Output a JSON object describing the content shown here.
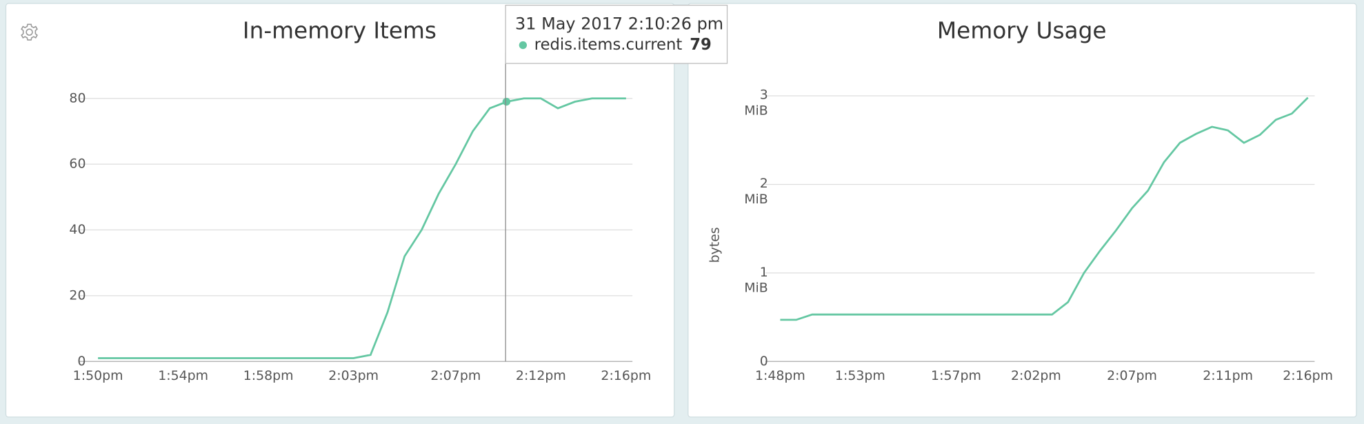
{
  "chart_data": [
    {
      "type": "line",
      "title": "In-memory Items",
      "color": "#64c7a2",
      "grid": true,
      "categories": [
        "1:50pm",
        null,
        null,
        null,
        null,
        "1:54pm",
        null,
        null,
        null,
        null,
        "1:58pm",
        null,
        null,
        null,
        null,
        "2:03pm",
        null,
        null,
        null,
        null,
        null,
        "2:07pm",
        null,
        null,
        null,
        null,
        "2:12pm",
        null,
        null,
        null,
        null,
        "2:16pm"
      ],
      "values": [
        1,
        1,
        1,
        1,
        1,
        1,
        1,
        1,
        1,
        1,
        1,
        1,
        1,
        1,
        1,
        1,
        2,
        15,
        32,
        40,
        51,
        60,
        70,
        77,
        79,
        80,
        80,
        77,
        79,
        80,
        80,
        80
      ],
      "ylim": [
        0,
        88
      ],
      "yticks": [
        0,
        20,
        40,
        60,
        80
      ],
      "tooltip": {
        "title": "31 May 2017 2:10:26 pm",
        "series": "redis.items.current",
        "value": 79
      }
    },
    {
      "type": "line",
      "title": "Memory Usage",
      "ylabel": "bytes",
      "color": "#64c7a2",
      "grid": true,
      "categories": [
        "1:48pm",
        null,
        null,
        null,
        null,
        "1:53pm",
        null,
        null,
        null,
        null,
        null,
        "1:57pm",
        null,
        null,
        null,
        null,
        "2:02pm",
        null,
        null,
        null,
        null,
        null,
        "2:07pm",
        null,
        null,
        null,
        null,
        null,
        "2:11pm",
        null,
        null,
        null,
        null,
        "2:16pm"
      ],
      "values": [
        493000,
        493000,
        556000,
        556000,
        556000,
        556000,
        556000,
        556000,
        556000,
        556000,
        556000,
        556000,
        556000,
        556000,
        556000,
        556000,
        556000,
        556000,
        703000,
        1049000,
        1311000,
        1552000,
        1814000,
        2024000,
        2359000,
        2590000,
        2695000,
        2779000,
        2737000,
        2590000,
        2684000,
        2863000,
        2936000,
        3125000
      ],
      "ylim": [
        0,
        3355000
      ],
      "yticks": [
        0,
        {
          "value": 1048576,
          "label": "1 MiB"
        },
        {
          "value": 2097152,
          "label": "2 MiB"
        },
        {
          "value": 3145728,
          "label": "3 MiB"
        }
      ]
    }
  ]
}
